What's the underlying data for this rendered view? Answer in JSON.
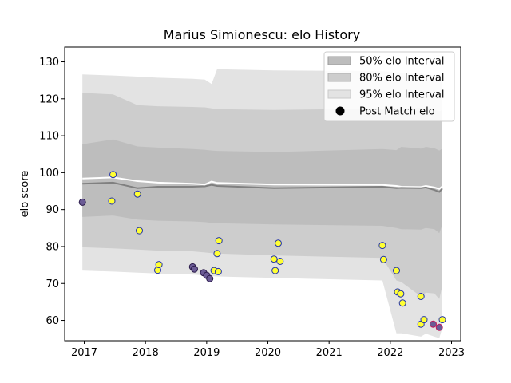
{
  "chart_data": {
    "type": "line",
    "title": "Marius Simionescu: elo History",
    "xlabel": "",
    "ylabel": "elo score",
    "xlim": [
      2016.68,
      2023.15
    ],
    "ylim": [
      54.5,
      134
    ],
    "xticks": [
      2017,
      2018,
      2019,
      2020,
      2021,
      2022,
      2023
    ],
    "xtick_labels": [
      "2017",
      "2018",
      "2019",
      "2020",
      "2021",
      "2022",
      "2023"
    ],
    "yticks": [
      60,
      70,
      80,
      90,
      100,
      110,
      120,
      130
    ],
    "ytick_labels": [
      "60",
      "70",
      "80",
      "90",
      "100",
      "110",
      "120",
      "130"
    ],
    "grid": false,
    "legend_position": "top-right",
    "legend": [
      {
        "label": "50% elo Interval",
        "kind": "band50"
      },
      {
        "label": "80% elo Interval",
        "kind": "band80"
      },
      {
        "label": "95% elo Interval",
        "kind": "band95"
      },
      {
        "label": "Post Match elo",
        "kind": "marker"
      }
    ],
    "colors": {
      "band50": "#bdbdbd",
      "band80": "#cdcdcd",
      "band95": "#e3e3e3",
      "mean_line": "#ffffff",
      "median_line": "#808080"
    },
    "band_x": [
      2016.97,
      2017.47,
      2017.87,
      2018.2,
      2018.77,
      2018.97,
      2019.08,
      2019.17,
      2020.1,
      2021.87,
      2022.1,
      2022.18,
      2022.5,
      2022.58,
      2022.72,
      2022.8,
      2022.85
    ],
    "series": [
      {
        "name": "95% elo Interval",
        "kind": "band95",
        "upper": [
          126.6,
          126.3,
          126.0,
          125.7,
          125.4,
          125.2,
          124.0,
          128.0,
          127.7,
          127.5,
          127.2,
          127.0,
          126.8,
          126.6,
          126.4,
          125.0,
          126.0
        ],
        "lower": [
          73.5,
          73.2,
          72.9,
          72.7,
          72.4,
          72.2,
          72.0,
          71.9,
          71.5,
          70.8,
          56.5,
          56.5,
          55.6,
          56.4,
          55.6,
          55.2,
          58.0
        ]
      },
      {
        "name": "80% elo Interval",
        "kind": "band80",
        "upper": [
          121.6,
          121.2,
          118.3,
          118.0,
          117.8,
          117.7,
          117.4,
          117.2,
          117.0,
          117.3,
          117.5,
          117.3,
          117.6,
          117.2,
          117.0,
          116.6,
          117.0
        ],
        "lower": [
          79.8,
          79.5,
          79.2,
          78.9,
          78.7,
          78.4,
          78.2,
          78.1,
          77.6,
          76.9,
          70.8,
          70.4,
          66.5,
          67.5,
          67.3,
          65.8,
          69.5
        ]
      },
      {
        "name": "50% elo Interval",
        "kind": "band50",
        "upper": [
          107.7,
          109.0,
          107.1,
          106.8,
          106.4,
          106.2,
          106.0,
          105.9,
          105.6,
          106.4,
          106.1,
          107.0,
          106.5,
          107.0,
          106.6,
          106.0,
          106.5
        ],
        "lower": [
          88.0,
          88.4,
          87.3,
          87.0,
          86.8,
          86.6,
          86.4,
          86.3,
          86.0,
          85.6,
          85.0,
          84.7,
          84.6,
          85.0,
          84.7,
          83.6,
          86.0
        ]
      },
      {
        "name": "mean",
        "kind": "mean_line",
        "values": [
          98.4,
          98.7,
          97.7,
          97.3,
          97.0,
          96.8,
          97.6,
          97.2,
          96.8,
          96.7,
          96.4,
          96.2,
          96.1,
          96.4,
          96.0,
          95.6,
          96.3
        ]
      },
      {
        "name": "median",
        "kind": "median_line",
        "values": [
          97.0,
          97.3,
          95.8,
          96.2,
          96.2,
          96.3,
          96.7,
          96.4,
          95.8,
          96.2,
          95.8,
          95.9,
          95.8,
          96.0,
          95.3,
          94.8,
          95.7
        ]
      }
    ],
    "points": [
      {
        "x": 2016.97,
        "y": 92.0,
        "fill": "#6b5b95",
        "edge": "#2a1a4a"
      },
      {
        "x": 2017.47,
        "y": 99.5,
        "fill": "#ffff33",
        "edge": "#2233aa"
      },
      {
        "x": 2017.45,
        "y": 92.3,
        "fill": "#ffff33",
        "edge": "#2233aa"
      },
      {
        "x": 2017.87,
        "y": 94.2,
        "fill": "#ffff33",
        "edge": "#2233aa"
      },
      {
        "x": 2017.9,
        "y": 84.3,
        "fill": "#ffff33",
        "edge": "#2233aa"
      },
      {
        "x": 2018.2,
        "y": 73.6,
        "fill": "#ffff33",
        "edge": "#2233aa"
      },
      {
        "x": 2018.22,
        "y": 75.1,
        "fill": "#ffff33",
        "edge": "#2233aa"
      },
      {
        "x": 2018.77,
        "y": 74.5,
        "fill": "#6b5b95",
        "edge": "#2a1a4a"
      },
      {
        "x": 2018.8,
        "y": 73.9,
        "fill": "#6b5b95",
        "edge": "#2a1a4a"
      },
      {
        "x": 2018.95,
        "y": 72.9,
        "fill": "#6b5b95",
        "edge": "#2a1a4a"
      },
      {
        "x": 2019.0,
        "y": 72.2,
        "fill": "#6b5b95",
        "edge": "#2a1a4a"
      },
      {
        "x": 2019.05,
        "y": 71.3,
        "fill": "#6b5b95",
        "edge": "#2a1a4a"
      },
      {
        "x": 2019.12,
        "y": 73.5,
        "fill": "#ffff33",
        "edge": "#2233aa"
      },
      {
        "x": 2019.17,
        "y": 78.1,
        "fill": "#ffff33",
        "edge": "#2233aa"
      },
      {
        "x": 2019.19,
        "y": 73.2,
        "fill": "#ffff33",
        "edge": "#2233aa"
      },
      {
        "x": 2019.2,
        "y": 81.6,
        "fill": "#ffff33",
        "edge": "#2233aa"
      },
      {
        "x": 2020.1,
        "y": 76.6,
        "fill": "#ffff33",
        "edge": "#2233aa"
      },
      {
        "x": 2020.12,
        "y": 73.5,
        "fill": "#ffff33",
        "edge": "#2233aa"
      },
      {
        "x": 2020.17,
        "y": 80.9,
        "fill": "#ffff33",
        "edge": "#2233aa"
      },
      {
        "x": 2020.2,
        "y": 76.0,
        "fill": "#ffff33",
        "edge": "#2233aa"
      },
      {
        "x": 2021.87,
        "y": 80.3,
        "fill": "#ffff33",
        "edge": "#2233aa"
      },
      {
        "x": 2021.89,
        "y": 76.5,
        "fill": "#ffff33",
        "edge": "#2233aa"
      },
      {
        "x": 2022.1,
        "y": 73.5,
        "fill": "#ffff33",
        "edge": "#2233aa"
      },
      {
        "x": 2022.12,
        "y": 67.7,
        "fill": "#ffff33",
        "edge": "#2233aa"
      },
      {
        "x": 2022.17,
        "y": 67.2,
        "fill": "#ffff33",
        "edge": "#2233aa"
      },
      {
        "x": 2022.2,
        "y": 64.7,
        "fill": "#ffff33",
        "edge": "#2233aa"
      },
      {
        "x": 2022.5,
        "y": 66.5,
        "fill": "#ffff33",
        "edge": "#2233aa"
      },
      {
        "x": 2022.5,
        "y": 59.0,
        "fill": "#ffff33",
        "edge": "#2233aa"
      },
      {
        "x": 2022.55,
        "y": 60.2,
        "fill": "#ffff33",
        "edge": "#2233aa"
      },
      {
        "x": 2022.7,
        "y": 59.0,
        "fill": "#6b5b95",
        "edge": "#c0185a"
      },
      {
        "x": 2022.8,
        "y": 58.1,
        "fill": "#6b5b95",
        "edge": "#c0185a"
      },
      {
        "x": 2022.85,
        "y": 60.2,
        "fill": "#ffff33",
        "edge": "#2233aa"
      }
    ]
  }
}
